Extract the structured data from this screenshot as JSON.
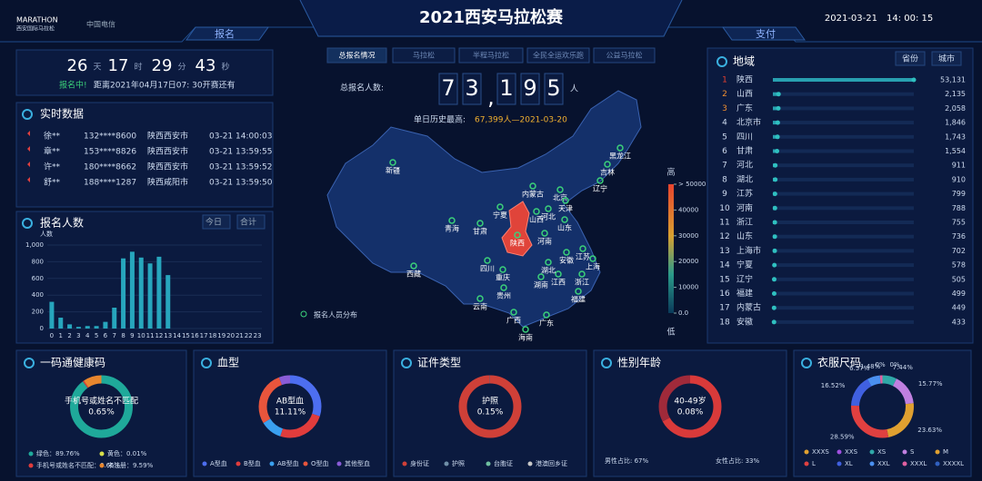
{
  "header": {
    "logo": "MARATHON",
    "logo_sub": "西安国际马拉松",
    "sponsor": "中国电信",
    "title": "2021西安马拉松赛",
    "left_tab": "报名",
    "right_tab": "支付",
    "date": "2021-03-21",
    "time": "14: 00: 15"
  },
  "countdown": {
    "items": [
      {
        "value": "26",
        "unit": "天"
      },
      {
        "value": "17",
        "unit": "时"
      },
      {
        "value": "29",
        "unit": "分"
      },
      {
        "value": "43",
        "unit": "秒"
      }
    ],
    "status": "报名中!",
    "text": "距离2021年04月17日07: 30开赛还有"
  },
  "realtime": {
    "title": "实时数据",
    "rows": [
      [
        "徐**",
        "132****8600",
        "陕西西安市",
        "03-21 14:00:03"
      ],
      [
        "章**",
        "153****8826",
        "陕西西安市",
        "03-21 13:59:55"
      ],
      [
        "许**",
        "180****8662",
        "陕西西安市",
        "03-21 13:59:52"
      ],
      [
        "舒**",
        "188****1287",
        "陕西咸阳市",
        "03-21 13:59:50"
      ]
    ]
  },
  "hourly": {
    "type": "bar",
    "title": "报名人数",
    "tabs": [
      "今日",
      "合计"
    ],
    "y_label": "人数",
    "color": "#27a6bd",
    "categories": [
      "0",
      "1",
      "2",
      "3",
      "4",
      "5",
      "6",
      "7",
      "8",
      "9",
      "10",
      "11",
      "12",
      "13",
      "14",
      "15",
      "16",
      "17",
      "18",
      "19",
      "20",
      "21",
      "22",
      "23"
    ],
    "values": [
      320,
      130,
      50,
      20,
      30,
      30,
      80,
      250,
      840,
      920,
      850,
      780,
      860,
      640,
      null,
      null,
      null,
      null,
      null,
      null,
      null,
      null,
      null,
      null
    ],
    "ylim": [
      0,
      1000
    ],
    "yticks": [
      0,
      200,
      400,
      600,
      800,
      {
        "value": 1000,
        "label": "1,000"
      }
    ]
  },
  "center": {
    "tabs": [
      "总报名情况",
      "马拉松",
      "半程马拉松",
      "全民全运欢乐跑",
      "公益马拉松"
    ],
    "total_label": "总报名人数:",
    "total_digits": [
      "7",
      "3",
      ",",
      "1",
      "9",
      "5"
    ],
    "total_unit": "人",
    "record_label": "单日历史最高:",
    "record": "67,399人—2021-03-20"
  },
  "map": {
    "provinces": [
      "新疆",
      "西藏",
      "青海",
      "甘肃",
      "宁夏",
      "内蒙古",
      "黑龙江",
      "吉林",
      "辽宁",
      "北京",
      "天津",
      "河北",
      "山西",
      "陕西",
      "山东",
      "河南",
      "四川",
      "重庆",
      "湖北",
      "安徽",
      "江苏",
      "上海",
      "浙江",
      "贵州",
      "湖南",
      "江西",
      "福建",
      "云南",
      "广西",
      "广东",
      "海南"
    ],
    "legend_high": "高",
    "legend_low": "低",
    "scale": [
      {
        "value": 50000,
        "label": "> 50000"
      },
      40000,
      30000,
      20000,
      10000,
      {
        "value": 0,
        "label": "0.0"
      }
    ],
    "legend_title": "报名人员分布"
  },
  "ranking": {
    "title": "地域",
    "tabs": [
      "省份",
      "城市"
    ],
    "rows": [
      {
        "rank": 1,
        "name": "陕西",
        "value": 53131,
        "value_label": "53,131"
      },
      {
        "rank": 2,
        "name": "山西",
        "value": 2135,
        "value_label": "2,135"
      },
      {
        "rank": 3,
        "name": "广东",
        "value": 2058,
        "value_label": "2,058"
      },
      {
        "rank": 4,
        "name": "北京市",
        "value": 1846,
        "value_label": "1,846"
      },
      {
        "rank": 5,
        "name": "四川",
        "value": 1743,
        "value_label": "1,743"
      },
      {
        "rank": 6,
        "name": "甘肃",
        "value": 1554,
        "value_label": "1,554"
      },
      {
        "rank": 7,
        "name": "河北",
        "value": 911,
        "value_label": "911"
      },
      {
        "rank": 8,
        "name": "湖北",
        "value": 910,
        "value_label": "910"
      },
      {
        "rank": 9,
        "name": "江苏",
        "value": 799,
        "value_label": "799"
      },
      {
        "rank": 10,
        "name": "河南",
        "value": 788,
        "value_label": "788"
      },
      {
        "rank": 11,
        "name": "浙江",
        "value": 755,
        "value_label": "755"
      },
      {
        "rank": 12,
        "name": "山东",
        "value": 736,
        "value_label": "736"
      },
      {
        "rank": 13,
        "name": "上海市",
        "value": 702,
        "value_label": "702"
      },
      {
        "rank": 14,
        "name": "宁夏",
        "value": 578,
        "value_label": "578"
      },
      {
        "rank": 15,
        "name": "辽宁",
        "value": 505,
        "value_label": "505"
      },
      {
        "rank": 16,
        "name": "福建",
        "value": 499,
        "value_label": "499"
      },
      {
        "rank": 17,
        "name": "内蒙古",
        "value": 449,
        "value_label": "449"
      },
      {
        "rank": 18,
        "name": "安徽",
        "value": 433,
        "value_label": "433"
      }
    ]
  },
  "panels": [
    {
      "type": "donut",
      "title": "一码通健康码",
      "center_label": "手机号或姓名不匹配",
      "center_value": "0.65%",
      "categories": [
        "绿色",
        "黄色",
        "手机号或姓名不匹配",
        "未注册"
      ],
      "values": [
        89.76,
        0.01,
        0.65,
        9.59
      ],
      "colors": [
        "#1fa99a",
        "#d8e04a",
        "#e03c3c",
        "#e8862e"
      ],
      "legend": [
        "绿色：89.76%",
        "黄色：0.01%",
        "手机号或姓名不匹配：0.65%",
        "未注册：9.59%"
      ]
    },
    {
      "type": "donut",
      "title": "血型",
      "center_label": "AB型血",
      "center_value": "11.11%",
      "categories": [
        "A型血",
        "B型血",
        "AB型血",
        "O型血",
        "其他型血"
      ],
      "values": [
        30,
        25,
        11.11,
        28,
        5.89
      ],
      "colors": [
        "#4d6ef0",
        "#e03c3c",
        "#3aa0f0",
        "#e8553c",
        "#8a5cd8"
      ],
      "legend": [
        "A型血",
        "B型血",
        "AB型血",
        "O型血",
        "其他型血"
      ]
    },
    {
      "type": "donut",
      "title": "证件类型",
      "center_label": "护照",
      "center_value": "0.15%",
      "categories": [
        "身份证",
        "护照",
        "台胞证",
        "港澳回乡证"
      ],
      "values": [
        99.7,
        0.15,
        0.1,
        0.05
      ],
      "colors": [
        "#cf4038",
        "#6f8fa8",
        "#6fc0a0",
        "#c8c8c8"
      ],
      "legend": [
        "身份证",
        "护照",
        "台胞证",
        "港澳回乡证"
      ]
    },
    {
      "type": "donut",
      "title": "性别年龄",
      "center_label": "40-49岁",
      "center_value": "0.08%",
      "values": [
        67,
        33
      ],
      "colors": [
        "#d93a3a",
        "#a02a3a"
      ],
      "legend": [
        "男性占比: 67%",
        "女性占比: 33%"
      ]
    },
    {
      "type": "donut",
      "title": "衣服尺码",
      "categories": [
        "XXXS",
        "XXS",
        "XS",
        "S",
        "M",
        "L",
        "XL",
        "XXL",
        "XXXL",
        "XXXXL"
      ],
      "values": [
        0,
        0,
        7.44,
        15.77,
        23.63,
        28.59,
        16.52,
        6.57,
        1.48,
        0
      ],
      "value_labels": [
        "0%",
        "0%",
        "7.44%",
        "15.77%",
        "23.63%",
        "28.59%",
        "16.52%",
        "6.57%",
        "1.48%",
        null
      ],
      "colors": [
        "#e0a030",
        "#a050e0",
        "#30a8a8",
        "#c080e0",
        "#e0a030",
        "#e04040",
        "#4060e0",
        "#4a90f0",
        "#e060a0",
        "#3060c0"
      ],
      "legend": [
        "XXXS",
        "XXS",
        "XS",
        "S",
        "M",
        "L",
        "XL",
        "XXL",
        "XXXL",
        "XXXXL"
      ]
    }
  ]
}
